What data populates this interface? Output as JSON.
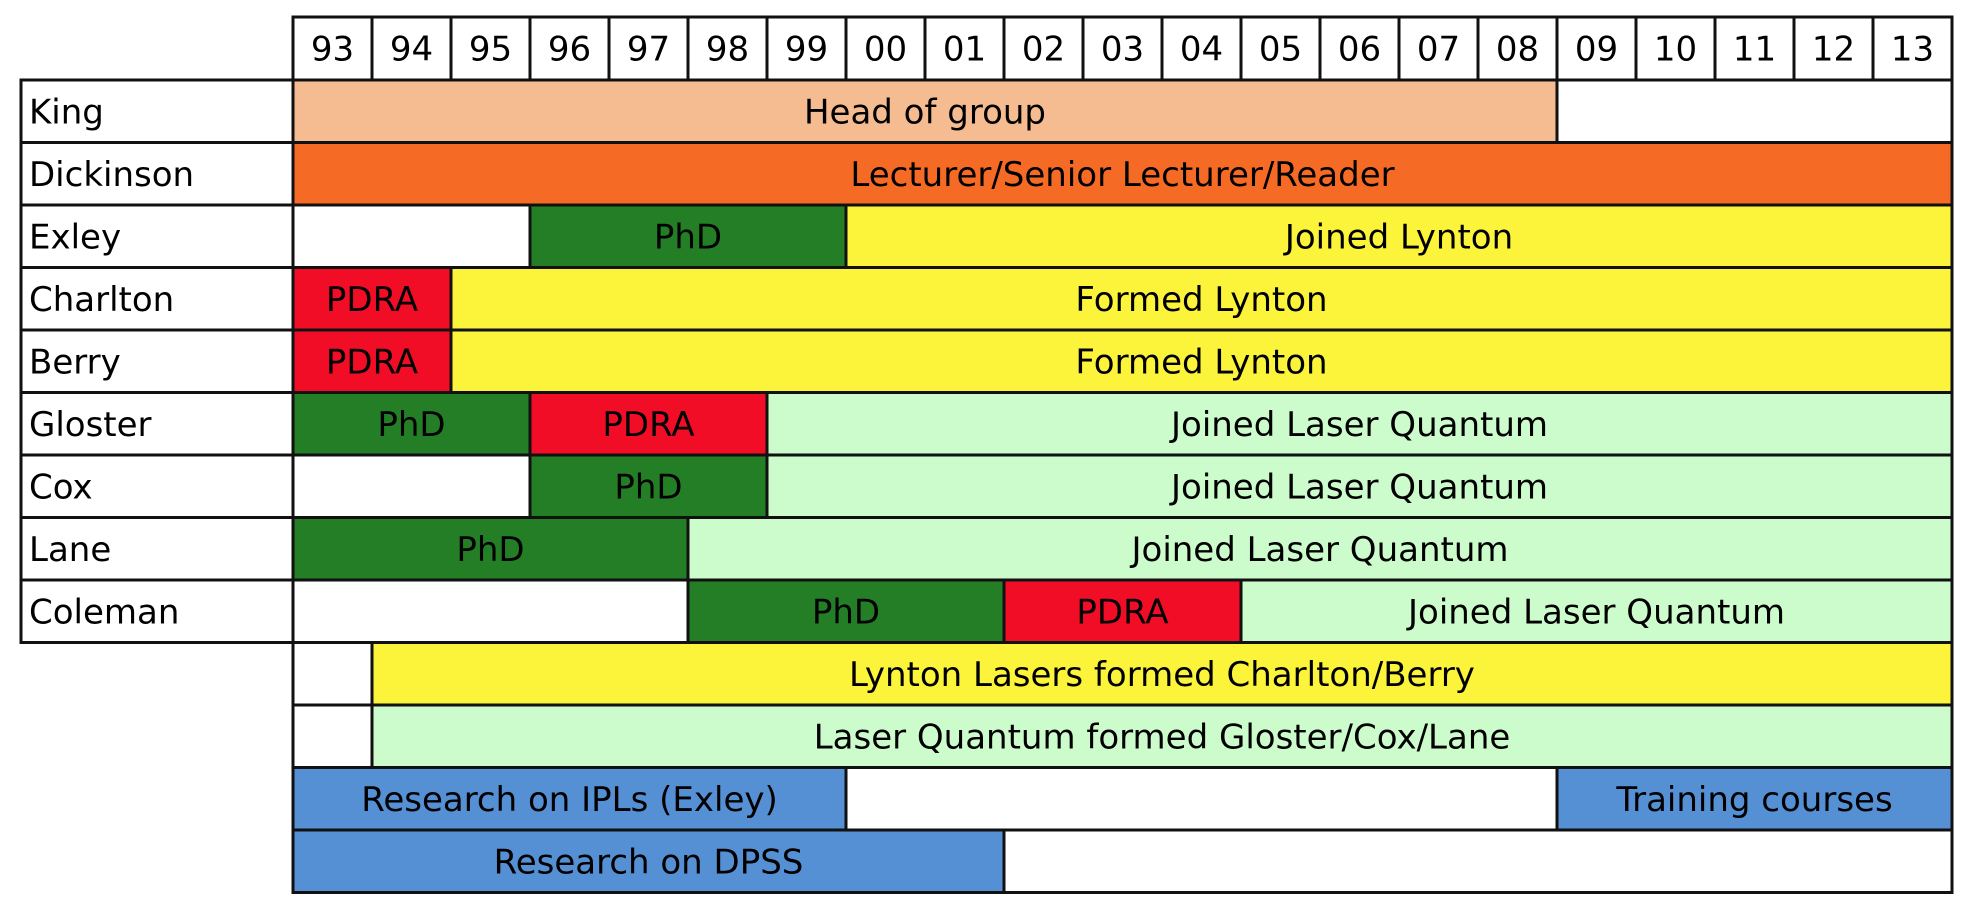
{
  "years": [
    "93",
    "94",
    "95",
    "96",
    "97",
    "98",
    "99",
    "00",
    "01",
    "02",
    "03",
    "04",
    "05",
    "06",
    "07",
    "08",
    "09",
    "10",
    "11",
    "12",
    "13"
  ],
  "colors": {
    "head": "#f6bc91",
    "lecturer": "#f56a25",
    "phd": "#247e26",
    "pdra": "#f20d26",
    "lynton": "#fbf43a",
    "laser_quantum": "#ccfccc",
    "research": "#558fd4",
    "empty": "#ffffff"
  },
  "rows": [
    {
      "name": "King",
      "segments": [
        {
          "start": 0,
          "end": 16,
          "label": "Head of group",
          "color": "head"
        },
        {
          "start": 16,
          "end": 21,
          "label": "",
          "color": "empty"
        }
      ]
    },
    {
      "name": "Dickinson",
      "segments": [
        {
          "start": 0,
          "end": 21,
          "label": "Lecturer/Senior Lecturer/Reader",
          "color": "lecturer"
        }
      ]
    },
    {
      "name": "Exley",
      "segments": [
        {
          "start": 0,
          "end": 3,
          "label": "",
          "color": "empty"
        },
        {
          "start": 3,
          "end": 7,
          "label": "PhD",
          "color": "phd"
        },
        {
          "start": 7,
          "end": 21,
          "label": "Joined Lynton",
          "color": "lynton"
        }
      ]
    },
    {
      "name": "Charlton",
      "segments": [
        {
          "start": 0,
          "end": 2,
          "label": "PDRA",
          "color": "pdra"
        },
        {
          "start": 2,
          "end": 21,
          "label": "Formed Lynton",
          "color": "lynton"
        }
      ]
    },
    {
      "name": "Berry",
      "segments": [
        {
          "start": 0,
          "end": 2,
          "label": "PDRA",
          "color": "pdra"
        },
        {
          "start": 2,
          "end": 21,
          "label": "Formed Lynton",
          "color": "lynton"
        }
      ]
    },
    {
      "name": "Gloster",
      "segments": [
        {
          "start": 0,
          "end": 3,
          "label": "PhD",
          "color": "phd"
        },
        {
          "start": 3,
          "end": 6,
          "label": "PDRA",
          "color": "pdra"
        },
        {
          "start": 6,
          "end": 21,
          "label": "Joined Laser Quantum",
          "color": "laser_quantum"
        }
      ]
    },
    {
      "name": "Cox",
      "segments": [
        {
          "start": 0,
          "end": 3,
          "label": "",
          "color": "empty"
        },
        {
          "start": 3,
          "end": 6,
          "label": "PhD",
          "color": "phd"
        },
        {
          "start": 6,
          "end": 21,
          "label": "Joined Laser Quantum",
          "color": "laser_quantum"
        }
      ]
    },
    {
      "name": "Lane",
      "segments": [
        {
          "start": 0,
          "end": 5,
          "label": "PhD",
          "color": "phd"
        },
        {
          "start": 5,
          "end": 21,
          "label": "Joined Laser Quantum",
          "color": "laser_quantum"
        }
      ]
    },
    {
      "name": "Coleman",
      "segments": [
        {
          "start": 0,
          "end": 5,
          "label": "",
          "color": "empty"
        },
        {
          "start": 5,
          "end": 9,
          "label": "PhD",
          "color": "phd"
        },
        {
          "start": 9,
          "end": 12,
          "label": "PDRA",
          "color": "pdra"
        },
        {
          "start": 12,
          "end": 21,
          "label": "Joined Laser Quantum",
          "color": "laser_quantum"
        }
      ]
    },
    {
      "name": "",
      "segments": [
        {
          "start": 0,
          "end": 1,
          "label": "",
          "color": "empty"
        },
        {
          "start": 1,
          "end": 21,
          "label": "Lynton Lasers formed  Charlton/Berry",
          "color": "lynton"
        }
      ]
    },
    {
      "name": "",
      "segments": [
        {
          "start": 0,
          "end": 1,
          "label": "",
          "color": "empty"
        },
        {
          "start": 1,
          "end": 21,
          "label": "Laser Quantum formed Gloster/Cox/Lane",
          "color": "laser_quantum"
        }
      ]
    },
    {
      "name": "",
      "segments": [
        {
          "start": 0,
          "end": 7,
          "label": "Research on IPLs (Exley)",
          "color": "research"
        },
        {
          "start": 7,
          "end": 16,
          "label": "",
          "color": "empty"
        },
        {
          "start": 16,
          "end": 21,
          "label": "Training courses",
          "color": "research"
        }
      ]
    },
    {
      "name": "",
      "segments": [
        {
          "start": 0,
          "end": 9,
          "label": "Research on DPSS",
          "color": "research"
        },
        {
          "start": 9,
          "end": 21,
          "label": "",
          "color": "empty"
        }
      ]
    }
  ]
}
